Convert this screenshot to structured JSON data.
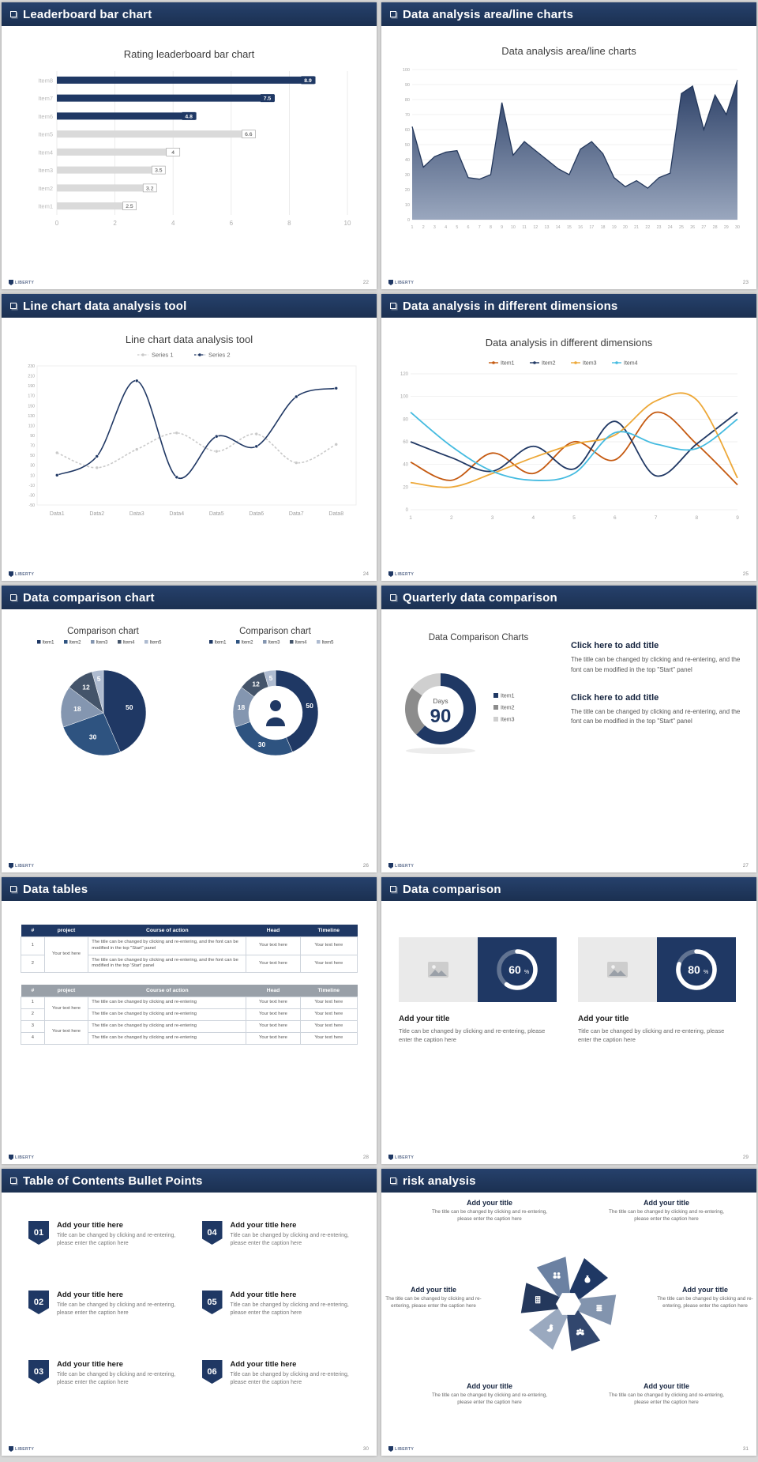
{
  "ui": {
    "logo_text": "LIBERTY",
    "accent_navy": "#1F3864",
    "muted_gray": "#D9D9D9"
  },
  "slides": [
    {
      "header": "Leaderboard bar chart",
      "page": "22",
      "title": "Rating leaderboard bar chart"
    },
    {
      "header": "Data analysis area/line charts",
      "page": "23",
      "title": "Data analysis area/line charts"
    },
    {
      "header": "Line chart data analysis tool",
      "page": "24",
      "title": "Line chart data analysis tool"
    },
    {
      "header": "Data analysis in different dimensions",
      "page": "25",
      "title": "Data analysis in different dimensions"
    },
    {
      "header": "Data comparison chart",
      "page": "26",
      "panel1_title": "Comparison chart",
      "panel2_title": "Comparison chart"
    },
    {
      "header": "Quarterly data comparison",
      "page": "27",
      "title": "Data Comparison Charts",
      "blocks": [
        {
          "title": "Click here to add title",
          "body": "The title can be changed by clicking and re-entering, and the font can be modified in the top \"Start\" panel"
        },
        {
          "title": "Click here to add title",
          "body": "The title can be changed by clicking and re-entering, and the font can be modified in the top \"Start\" panel"
        }
      ]
    },
    {
      "header": "Data tables",
      "page": "28",
      "tables": [
        {
          "theme": "t-navy",
          "columns": [
            "#",
            "project",
            "Course of action",
            "Head",
            "Timeline"
          ],
          "rows": [
            {
              "num": "1",
              "project": "Your text here",
              "project_span": 2,
              "course": "The title can be changed by clicking and re-entering, and the font can be modified in the top \"Start\" panel",
              "head": "Your text here",
              "timeline": "Your text here"
            },
            {
              "num": "2",
              "course": "The title can be changed by clicking and re-entering, and the font can be modified in the top 'Start' panel",
              "head": "Your text here",
              "timeline": "Your text here"
            }
          ]
        },
        {
          "theme": "t-gray",
          "columns": [
            "#",
            "project",
            "Course of action",
            "Head",
            "Timeline"
          ],
          "rows": [
            {
              "num": "1",
              "project": "Your text here",
              "project_span": 2,
              "course": "The title can be changed by clicking and re-entering",
              "head": "Your text here",
              "timeline": "Your text here"
            },
            {
              "num": "2",
              "course": "The title can be changed by clicking and re-entering",
              "head": "Your text here",
              "timeline": "Your text here"
            },
            {
              "num": "3",
              "project": "Your text here",
              "project_span": 2,
              "course": "The title can be changed by clicking and re-entering",
              "head": "Your text here",
              "timeline": "Your text here"
            },
            {
              "num": "4",
              "course": "The title can be changed by clicking and re-entering",
              "head": "Your text here",
              "timeline": "Your text here"
            }
          ]
        }
      ]
    },
    {
      "header": "Data comparison",
      "page": "29",
      "cards": [
        {
          "title": "Add your title",
          "caption": "Title can be changed by clicking and re-entering, please enter the caption here"
        },
        {
          "title": "Add your title",
          "caption": "Title can be changed by clicking and re-entering, please enter the caption here"
        }
      ]
    },
    {
      "header": "Table of Contents Bullet Points",
      "page": "30",
      "items": [
        {
          "num": "01",
          "title": "Add your title here",
          "caption": "Title can be changed by clicking and re-entering, please enter the caption here"
        },
        {
          "num": "02",
          "title": "Add your title here",
          "caption": "Title can be changed by clicking and re-entering, please enter the caption here"
        },
        {
          "num": "03",
          "title": "Add your title here",
          "caption": "Title can be changed by clicking and re-entering, please enter the caption here"
        },
        {
          "num": "04",
          "title": "Add your title here",
          "caption": "Title can be changed by clicking and re-entering, please enter the caption here"
        },
        {
          "num": "05",
          "title": "Add your title here",
          "caption": "Title can be changed by clicking and re-entering, please enter the caption here"
        },
        {
          "num": "06",
          "title": "Add your title here",
          "caption": "Title can be changed by clicking and re-entering, please enter the caption here"
        }
      ]
    },
    {
      "header": "risk analysis",
      "page": "31",
      "items": [
        {
          "icon": "money-bag-icon",
          "title": "Add your title",
          "caption": "The title can be changed by clicking and re-entering, please enter the caption here"
        },
        {
          "icon": "coins-icon",
          "title": "Add your title",
          "caption": "The title can be changed by clicking and re-entering, please enter the caption here"
        },
        {
          "icon": "team-icon",
          "title": "Add your title",
          "caption": "The title can be changed by clicking and re-entering, please enter the caption here"
        },
        {
          "icon": "pie-chart-icon",
          "title": "Add your title",
          "caption": "The title can be changed by clicking and re-entering, please enter the caption here"
        },
        {
          "icon": "company-icon",
          "title": "Add your title",
          "caption": "The title can be changed by clicking and re-entering, please enter the caption here"
        },
        {
          "icon": "partners-icon",
          "title": "Add your title",
          "caption": "The title can be changed by clicking and re-entering, please enter the caption here"
        }
      ]
    }
  ],
  "chart_data": [
    {
      "type": "bar",
      "orientation": "horizontal",
      "slide": "Leaderboard bar chart",
      "title": "Rating leaderboard bar chart",
      "categories": [
        "Item1",
        "Item2",
        "Item3",
        "Item4",
        "Item5",
        "Item6",
        "Item7",
        "Item8"
      ],
      "values": [
        2.5,
        3.2,
        3.5,
        4,
        6.6,
        4.8,
        7.5,
        8.9
      ],
      "highlighted": [
        false,
        false,
        false,
        false,
        false,
        true,
        true,
        true
      ],
      "bar_color": "#1F3864",
      "muted_color": "#DADADA",
      "xlim": [
        0,
        10
      ],
      "xticks": [
        0,
        2,
        4,
        6,
        8,
        10
      ]
    },
    {
      "type": "area",
      "slide": "Data analysis area/line charts",
      "title": "Data analysis area/line charts",
      "x_start": 1,
      "values": [
        62,
        35,
        42,
        45,
        46,
        28,
        27,
        30,
        78,
        43,
        52,
        46,
        40,
        34,
        30,
        47,
        52,
        44,
        28,
        22,
        26,
        21,
        28,
        31,
        84,
        89,
        60,
        83,
        70,
        93
      ],
      "ylim": [
        0,
        100
      ],
      "ytick_step": 10,
      "fill_top": "#2B3F66",
      "fill_bottom": "#9AA7BE",
      "stroke": "#24385C"
    },
    {
      "type": "line",
      "slide": "Line chart data analysis tool",
      "title": "Line chart data analysis tool",
      "categories": [
        "Data1",
        "Data2",
        "Data3",
        "Data4",
        "Data5",
        "Data6",
        "Data7",
        "Data8"
      ],
      "ylim": [
        -50,
        230
      ],
      "ytick_step": 20,
      "series": [
        {
          "name": "Series 1",
          "color": "#C9C9C9",
          "dashed": true,
          "values": [
            55,
            25,
            62,
            95,
            58,
            93,
            35,
            72
          ]
        },
        {
          "name": "Series 2",
          "color": "#203864",
          "dashed": false,
          "values": [
            10,
            48,
            200,
            6,
            88,
            68,
            168,
            185
          ]
        }
      ]
    },
    {
      "type": "line",
      "slide": "Data analysis in different dimensions",
      "title": "Data analysis in different dimensions",
      "x": [
        1,
        2,
        3,
        4,
        5,
        6,
        7,
        8,
        9
      ],
      "ylim": [
        0,
        120
      ],
      "ytick_step": 20,
      "series": [
        {
          "name": "Item1",
          "color": "#C55A11",
          "values": [
            42,
            26,
            50,
            32,
            60,
            44,
            86,
            58,
            22
          ]
        },
        {
          "name": "Item2",
          "color": "#203864",
          "values": [
            60,
            46,
            34,
            56,
            36,
            78,
            30,
            58,
            86
          ]
        },
        {
          "name": "Item3",
          "color": "#EDA838",
          "values": [
            24,
            20,
            32,
            46,
            58,
            66,
            96,
            97,
            28
          ]
        },
        {
          "name": "Item4",
          "color": "#45BBE0",
          "values": [
            86,
            56,
            34,
            26,
            32,
            68,
            58,
            54,
            80
          ]
        }
      ]
    },
    {
      "type": "pie",
      "slide": "Data comparison chart",
      "title": "Comparison chart",
      "categories": [
        "Item1",
        "Item2",
        "Item3",
        "Item4",
        "Item5"
      ],
      "values": [
        50,
        30,
        18,
        12,
        5
      ],
      "colors": [
        "#1F3864",
        "#2E5380",
        "#8496B0",
        "#44546A",
        "#AEBBD0"
      ]
    },
    {
      "type": "donut",
      "slide": "Data comparison chart",
      "title": "Comparison chart",
      "categories": [
        "Item1",
        "Item2",
        "Item3",
        "Item4",
        "Item5"
      ],
      "values": [
        50,
        30,
        18,
        12,
        5
      ],
      "colors": [
        "#1F3864",
        "#2E5380",
        "#8496B0",
        "#44546A",
        "#AEBBD0"
      ],
      "center_icon": "presenter-icon"
    },
    {
      "type": "donut",
      "slide": "Quarterly data comparison",
      "title": "Data Comparison Charts",
      "categories": [
        "Item1",
        "Item2",
        "Item3"
      ],
      "values": [
        62,
        23,
        15
      ],
      "colors": [
        "#1F3864",
        "#8C8C8C",
        "#CFCFCF"
      ],
      "center_label": "Days",
      "center_value": "90"
    },
    {
      "type": "progress-donut",
      "slide": "Data comparison",
      "values": [
        60,
        80
      ],
      "unit": "%",
      "ring_color": "#FFFFFF",
      "bg": "#1F3864"
    }
  ]
}
